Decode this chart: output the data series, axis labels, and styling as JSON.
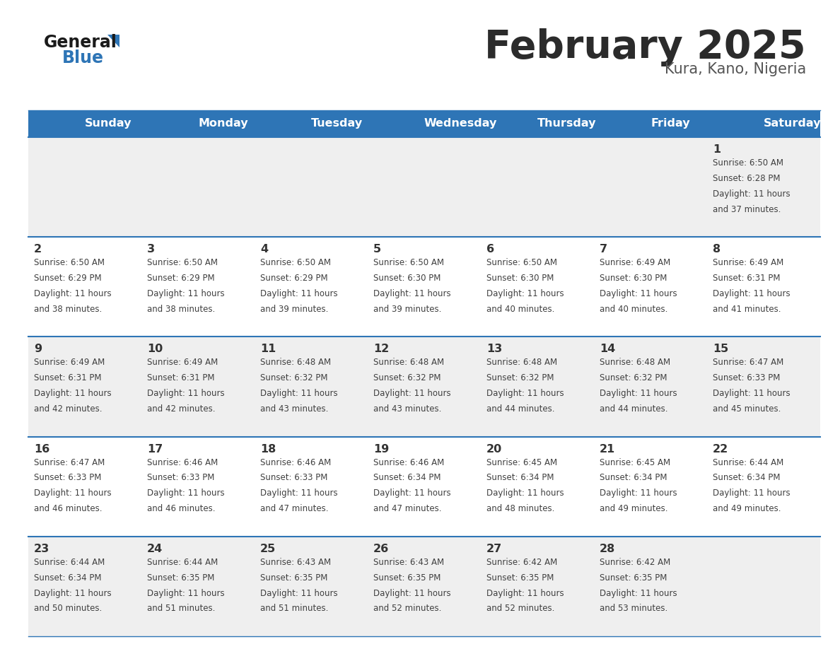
{
  "title": "February 2025",
  "subtitle": "Kura, Kano, Nigeria",
  "header_bg_color": "#2E75B6",
  "header_text_color": "#FFFFFF",
  "day_names": [
    "Sunday",
    "Monday",
    "Tuesday",
    "Wednesday",
    "Thursday",
    "Friday",
    "Saturday"
  ],
  "row_bg_gray": "#EFEFEF",
  "row_bg_white": "#FFFFFF",
  "cell_text_color": "#404040",
  "day_num_color": "#333333",
  "title_color": "#2B2B2B",
  "subtitle_color": "#555555",
  "divider_color": "#2E75B6",
  "logo_text_color": "#1A1A1A",
  "logo_blue_color": "#2E75B6",
  "calendar": [
    [
      null,
      null,
      null,
      null,
      null,
      null,
      {
        "day": 1,
        "sunrise": "6:50 AM",
        "sunset": "6:28 PM",
        "daylight": "11 hours and 37 minutes"
      }
    ],
    [
      {
        "day": 2,
        "sunrise": "6:50 AM",
        "sunset": "6:29 PM",
        "daylight": "11 hours and 38 minutes"
      },
      {
        "day": 3,
        "sunrise": "6:50 AM",
        "sunset": "6:29 PM",
        "daylight": "11 hours and 38 minutes"
      },
      {
        "day": 4,
        "sunrise": "6:50 AM",
        "sunset": "6:29 PM",
        "daylight": "11 hours and 39 minutes"
      },
      {
        "day": 5,
        "sunrise": "6:50 AM",
        "sunset": "6:30 PM",
        "daylight": "11 hours and 39 minutes"
      },
      {
        "day": 6,
        "sunrise": "6:50 AM",
        "sunset": "6:30 PM",
        "daylight": "11 hours and 40 minutes"
      },
      {
        "day": 7,
        "sunrise": "6:49 AM",
        "sunset": "6:30 PM",
        "daylight": "11 hours and 40 minutes"
      },
      {
        "day": 8,
        "sunrise": "6:49 AM",
        "sunset": "6:31 PM",
        "daylight": "11 hours and 41 minutes"
      }
    ],
    [
      {
        "day": 9,
        "sunrise": "6:49 AM",
        "sunset": "6:31 PM",
        "daylight": "11 hours and 42 minutes"
      },
      {
        "day": 10,
        "sunrise": "6:49 AM",
        "sunset": "6:31 PM",
        "daylight": "11 hours and 42 minutes"
      },
      {
        "day": 11,
        "sunrise": "6:48 AM",
        "sunset": "6:32 PM",
        "daylight": "11 hours and 43 minutes"
      },
      {
        "day": 12,
        "sunrise": "6:48 AM",
        "sunset": "6:32 PM",
        "daylight": "11 hours and 43 minutes"
      },
      {
        "day": 13,
        "sunrise": "6:48 AM",
        "sunset": "6:32 PM",
        "daylight": "11 hours and 44 minutes"
      },
      {
        "day": 14,
        "sunrise": "6:48 AM",
        "sunset": "6:32 PM",
        "daylight": "11 hours and 44 minutes"
      },
      {
        "day": 15,
        "sunrise": "6:47 AM",
        "sunset": "6:33 PM",
        "daylight": "11 hours and 45 minutes"
      }
    ],
    [
      {
        "day": 16,
        "sunrise": "6:47 AM",
        "sunset": "6:33 PM",
        "daylight": "11 hours and 46 minutes"
      },
      {
        "day": 17,
        "sunrise": "6:46 AM",
        "sunset": "6:33 PM",
        "daylight": "11 hours and 46 minutes"
      },
      {
        "day": 18,
        "sunrise": "6:46 AM",
        "sunset": "6:33 PM",
        "daylight": "11 hours and 47 minutes"
      },
      {
        "day": 19,
        "sunrise": "6:46 AM",
        "sunset": "6:34 PM",
        "daylight": "11 hours and 47 minutes"
      },
      {
        "day": 20,
        "sunrise": "6:45 AM",
        "sunset": "6:34 PM",
        "daylight": "11 hours and 48 minutes"
      },
      {
        "day": 21,
        "sunrise": "6:45 AM",
        "sunset": "6:34 PM",
        "daylight": "11 hours and 49 minutes"
      },
      {
        "day": 22,
        "sunrise": "6:44 AM",
        "sunset": "6:34 PM",
        "daylight": "11 hours and 49 minutes"
      }
    ],
    [
      {
        "day": 23,
        "sunrise": "6:44 AM",
        "sunset": "6:34 PM",
        "daylight": "11 hours and 50 minutes"
      },
      {
        "day": 24,
        "sunrise": "6:44 AM",
        "sunset": "6:35 PM",
        "daylight": "11 hours and 51 minutes"
      },
      {
        "day": 25,
        "sunrise": "6:43 AM",
        "sunset": "6:35 PM",
        "daylight": "11 hours and 51 minutes"
      },
      {
        "day": 26,
        "sunrise": "6:43 AM",
        "sunset": "6:35 PM",
        "daylight": "11 hours and 52 minutes"
      },
      {
        "day": 27,
        "sunrise": "6:42 AM",
        "sunset": "6:35 PM",
        "daylight": "11 hours and 52 minutes"
      },
      {
        "day": 28,
        "sunrise": "6:42 AM",
        "sunset": "6:35 PM",
        "daylight": "11 hours and 53 minutes"
      },
      null
    ]
  ]
}
